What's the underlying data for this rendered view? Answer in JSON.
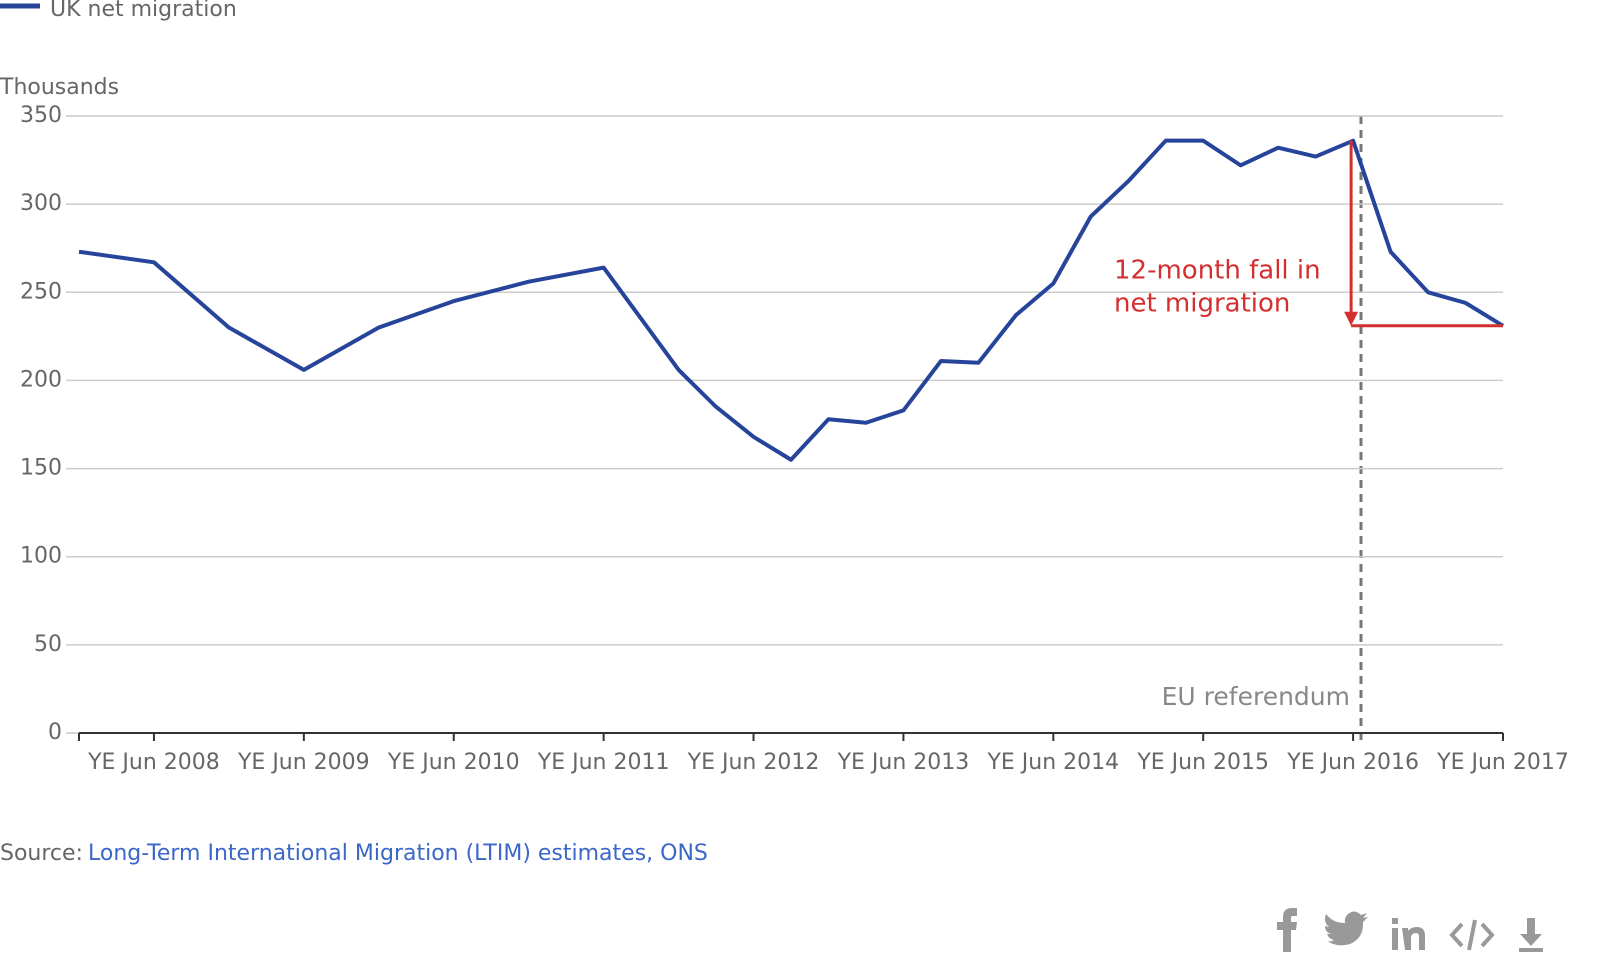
{
  "chart_data": {
    "type": "line",
    "legend_label": "UK net migration",
    "y_axis_label": "Thousands",
    "x": [
      2007.5,
      2008,
      2008.5,
      2009,
      2009.5,
      2010,
      2010.5,
      2011,
      2011.5,
      2011.75,
      2012,
      2012.25,
      2012.5,
      2012.75,
      2013,
      2013.25,
      2013.5,
      2013.75,
      2014,
      2014.25,
      2014.5,
      2014.75,
      2015,
      2015.25,
      2015.5,
      2015.75,
      2016,
      2016.25,
      2016.5,
      2016.75,
      2017
    ],
    "series": [
      {
        "name": "UK net migration",
        "color": "#27449b",
        "values": [
          273,
          267,
          230,
          206,
          230,
          245,
          256,
          264,
          206,
          185,
          168,
          155,
          178,
          176,
          183,
          211,
          210,
          237,
          255,
          293,
          313,
          336,
          336,
          322,
          332,
          327,
          336,
          273,
          250,
          244,
          231
        ]
      }
    ],
    "xlim": [
      2007.5,
      2017
    ],
    "xticks": [
      {
        "value": 2008,
        "label": "YE Jun 2008"
      },
      {
        "value": 2009,
        "label": "YE Jun 2009"
      },
      {
        "value": 2010,
        "label": "YE Jun 2010"
      },
      {
        "value": 2011,
        "label": "YE Jun 2011"
      },
      {
        "value": 2012,
        "label": "YE Jun 2012"
      },
      {
        "value": 2013,
        "label": "YE Jun 2013"
      },
      {
        "value": 2014,
        "label": "YE Jun 2014"
      },
      {
        "value": 2015,
        "label": "YE Jun 2015"
      },
      {
        "value": 2016,
        "label": "YE Jun 2016"
      },
      {
        "value": 2017,
        "label": "YE Jun 2017"
      }
    ],
    "ylim": [
      0,
      350
    ],
    "yticks": [
      0,
      50,
      100,
      150,
      200,
      250,
      300,
      350
    ],
    "grid": true,
    "annotation": [
      "12-month fall in",
      "net migration"
    ],
    "annotation_color": "#d32f2f",
    "event_label": "EU referendum",
    "source_prefix": "Source:",
    "source_link": "Long-Term International Migration (LTIM) estimates, ONS"
  }
}
